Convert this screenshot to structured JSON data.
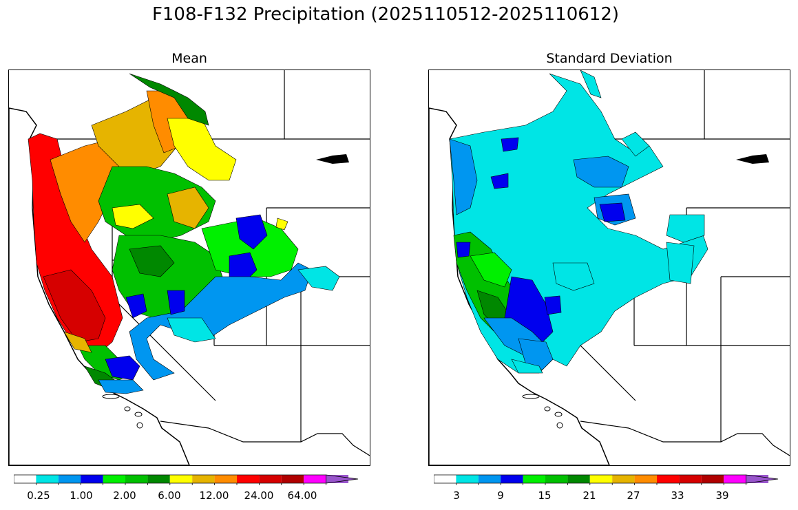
{
  "figure": {
    "title": "F108-F132 Precipitation (2025110512-2025110612)"
  },
  "panels": {
    "left": {
      "title": "Mean",
      "colorbar": {
        "colors": [
          "#ffffff",
          "#00e5e5",
          "#0096f0",
          "#0000ee",
          "#00f000",
          "#00c000",
          "#008800",
          "#ffff00",
          "#e6b400",
          "#ff8c00",
          "#ff0000",
          "#d60000",
          "#b00000",
          "#ff00ff",
          "#9955cc"
        ],
        "labels": [
          "0.25",
          "1.00",
          "2.00",
          "6.00",
          "12.00",
          "24.00",
          "64.00"
        ],
        "extend": "max"
      }
    },
    "right": {
      "title": "Standard Deviation",
      "colorbar": {
        "colors": [
          "#ffffff",
          "#00e5e5",
          "#0096f0",
          "#0000ee",
          "#00f000",
          "#00c000",
          "#008800",
          "#ffff00",
          "#e6b400",
          "#ff8c00",
          "#ff0000",
          "#d60000",
          "#b00000",
          "#ff00ff",
          "#9955cc"
        ],
        "labels": [
          "3",
          "9",
          "15",
          "21",
          "27",
          "33",
          "39"
        ],
        "extend": "max"
      }
    }
  }
}
